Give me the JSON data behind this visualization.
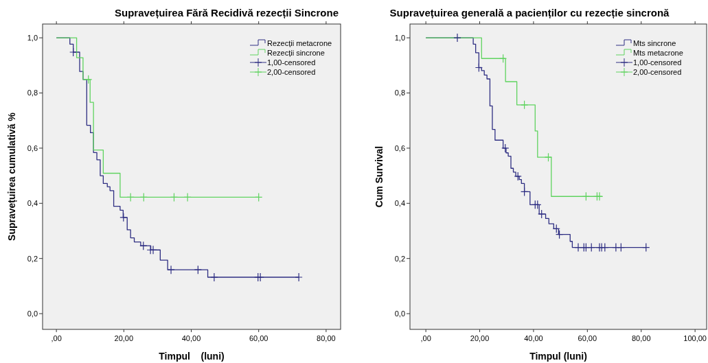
{
  "chart_data": [
    {
      "type": "step",
      "title": "Supravețuirea Fără Recidivă rezecții Sincrone",
      "xlabel": "Timpul    (luni)",
      "ylabel": "Supravețuirea cumulativă %",
      "xlim": [
        -4.1,
        84.3
      ],
      "ylim": [
        -0.057,
        1.05
      ],
      "xticks": [
        {
          "value": 0,
          "label": ",00"
        },
        {
          "value": 20,
          "label": "20,00"
        },
        {
          "value": 40,
          "label": "40,00"
        },
        {
          "value": 60,
          "label": "60,00"
        },
        {
          "value": 80,
          "label": "80,00"
        }
      ],
      "yticks": [
        {
          "value": 0,
          "label": "0,0"
        },
        {
          "value": 0.2,
          "label": "0,2"
        },
        {
          "value": 0.4,
          "label": "0,4"
        },
        {
          "value": 0.6,
          "label": "0,6"
        },
        {
          "value": 0.8,
          "label": "0,8"
        },
        {
          "value": 1,
          "label": "1,0"
        }
      ],
      "grid": false,
      "legend": "top right",
      "series": [
        {
          "name": "Rezecții metacrone",
          "color": "#2e2e82",
          "x": [
            0,
            4.0,
            5.0,
            6.9,
            7.9,
            9.0,
            10.1,
            11.0,
            12.0,
            13.0,
            13.9,
            15.1,
            15.9,
            17.0,
            18.9,
            19.8,
            21.0,
            22.0,
            23.1,
            25.0,
            28.0,
            30.8,
            33.0,
            44.9,
            71.9
          ],
          "values": [
            1,
            0.977,
            0.948,
            0.878,
            0.849,
            0.683,
            0.656,
            0.584,
            0.558,
            0.5,
            0.472,
            0.46,
            0.446,
            0.389,
            0.375,
            0.349,
            0.304,
            0.275,
            0.26,
            0.246,
            0.231,
            0.194,
            0.159,
            0.132,
            0.132
          ]
        },
        {
          "name": "Rezecții sincrone",
          "color": "#5fd35f",
          "x": [
            0,
            6.0,
            7.9,
            10.0,
            11.0,
            13.9,
            18.9,
            60.0
          ],
          "values": [
            1,
            0.928,
            0.849,
            0.766,
            0.593,
            0.509,
            0.422,
            0.422
          ]
        },
        {
          "name": "1,00-censored",
          "type": "scatter",
          "marker": "cross",
          "color": "#2e2e82",
          "x": [
            5.0,
            19.9,
            25.8,
            27.9,
            28.7,
            34.0,
            42.0,
            46.8,
            59.8,
            60.5,
            71.9
          ],
          "values": [
            0.948,
            0.349,
            0.246,
            0.231,
            0.231,
            0.159,
            0.159,
            0.132,
            0.132,
            0.132,
            0.132
          ]
        },
        {
          "name": "2,00-censored",
          "type": "scatter",
          "marker": "cross",
          "color": "#5fd35f",
          "x": [
            9.5,
            22.0,
            25.9,
            34.9,
            38.9,
            60.0
          ],
          "values": [
            0.849,
            0.422,
            0.422,
            0.422,
            0.422,
            0.422
          ]
        }
      ]
    },
    {
      "type": "step",
      "title": "Supravețuirea generală a pacienților cu rezecție sincronă",
      "xlabel": "Timpul (luni)",
      "ylabel": "Cum Survival",
      "xlim": [
        -5.9,
        104.3
      ],
      "ylim": [
        -0.057,
        1.05
      ],
      "xticks": [
        {
          "value": 0,
          "label": ",00"
        },
        {
          "value": 20,
          "label": "20,00"
        },
        {
          "value": 40,
          "label": "40,00"
        },
        {
          "value": 60,
          "label": "60,00"
        },
        {
          "value": 80,
          "label": "80,00"
        },
        {
          "value": 100,
          "label": "100,00"
        }
      ],
      "yticks": [
        {
          "value": 0,
          "label": "0,0"
        },
        {
          "value": 0.2,
          "label": "0,2"
        },
        {
          "value": 0.4,
          "label": "0,4"
        },
        {
          "value": 0.6,
          "label": "0,6"
        },
        {
          "value": 0.8,
          "label": "0,8"
        },
        {
          "value": 1,
          "label": "1,0"
        }
      ],
      "grid": false,
      "legend": "top right",
      "series": [
        {
          "name": "Mts sincrone",
          "color": "#2e2e82",
          "x": [
            0,
            17.6,
            18.5,
            19.7,
            20.7,
            21.7,
            22.7,
            23.8,
            24.7,
            25.7,
            28.7,
            29.8,
            30.6,
            31.6,
            32.5,
            33.4,
            34.7,
            35.5,
            36.6,
            38.7,
            42.1,
            44.5,
            45.7,
            47.5,
            49.3,
            53.6,
            54.4,
            81.8
          ],
          "values": [
            1,
            0.977,
            0.946,
            0.892,
            0.881,
            0.865,
            0.851,
            0.753,
            0.668,
            0.629,
            0.6,
            0.583,
            0.571,
            0.527,
            0.513,
            0.498,
            0.486,
            0.472,
            0.442,
            0.395,
            0.361,
            0.345,
            0.326,
            0.308,
            0.287,
            0.262,
            0.24,
            0.24
          ]
        },
        {
          "name": "Mts metacrone",
          "color": "#5fd35f",
          "x": [
            0,
            20.7,
            29.6,
            33.8,
            40.6,
            41.5,
            46.6,
            65.5
          ],
          "values": [
            1,
            0.925,
            0.841,
            0.757,
            0.662,
            0.567,
            0.425,
            0.425
          ]
        },
        {
          "name": "1,00-censored",
          "type": "scatter",
          "marker": "cross",
          "color": "#2e2e82",
          "x": [
            11.7,
            19.7,
            29.5,
            34.2,
            36.6,
            40.6,
            41.5,
            43.0,
            48.5,
            49.6,
            56.6,
            58.7,
            59.5,
            61.5,
            64.5,
            65.3,
            66.5,
            70.6,
            72.5,
            81.8
          ],
          "values": [
            1,
            0.892,
            0.6,
            0.498,
            0.442,
            0.395,
            0.395,
            0.361,
            0.308,
            0.287,
            0.24,
            0.24,
            0.24,
            0.24,
            0.24,
            0.24,
            0.24,
            0.24,
            0.24,
            0.24
          ]
        },
        {
          "name": "2,00-censored",
          "type": "scatter",
          "marker": "cross",
          "color": "#5fd35f",
          "x": [
            28.7,
            36.6,
            45.5,
            59.5,
            63.6,
            64.5
          ],
          "values": [
            0.925,
            0.757,
            0.567,
            0.425,
            0.425,
            0.425
          ]
        }
      ]
    }
  ]
}
